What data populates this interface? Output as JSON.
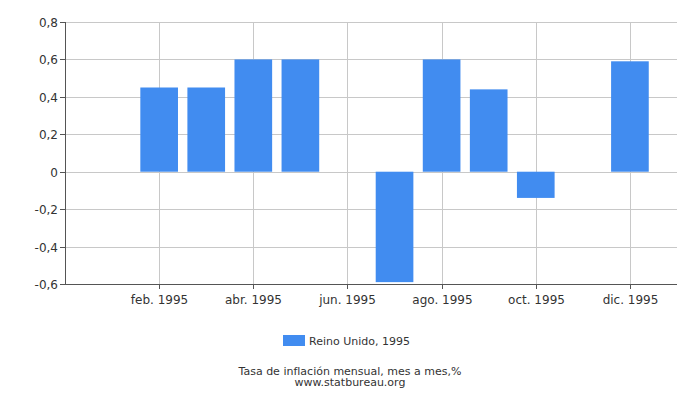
{
  "chart_data": {
    "type": "bar",
    "title": "Tasa de inflación mensual, mes a mes,%",
    "source": "www.statbureau.org",
    "categories": [
      null,
      "feb. 1995",
      null,
      "abr. 1995",
      null,
      "jun. 1995",
      null,
      "ago. 1995",
      null,
      "oct. 1995",
      null,
      "dic. 1995"
    ],
    "series": [
      {
        "name": "Reino Unido, 1995",
        "color": "#418cf0",
        "values": [
          0,
          0.45,
          0.45,
          0.6,
          0.6,
          0,
          -0.59,
          0.6,
          0.44,
          -0.14,
          0,
          0.59
        ]
      }
    ],
    "ylim": [
      -0.6,
      0.8
    ],
    "yticks": [
      {
        "value": -0.6,
        "label": "-0,6"
      },
      {
        "value": -0.4,
        "label": "-0,4"
      },
      {
        "value": -0.2,
        "label": "-0,2"
      },
      0,
      {
        "value": 0.2,
        "label": "0,2"
      },
      {
        "value": 0.4,
        "label": "0,4"
      },
      {
        "value": 0.6,
        "label": "0,6"
      },
      {
        "value": 0.8,
        "label": "0,8"
      }
    ],
    "grid": true,
    "legend": "bottom"
  }
}
